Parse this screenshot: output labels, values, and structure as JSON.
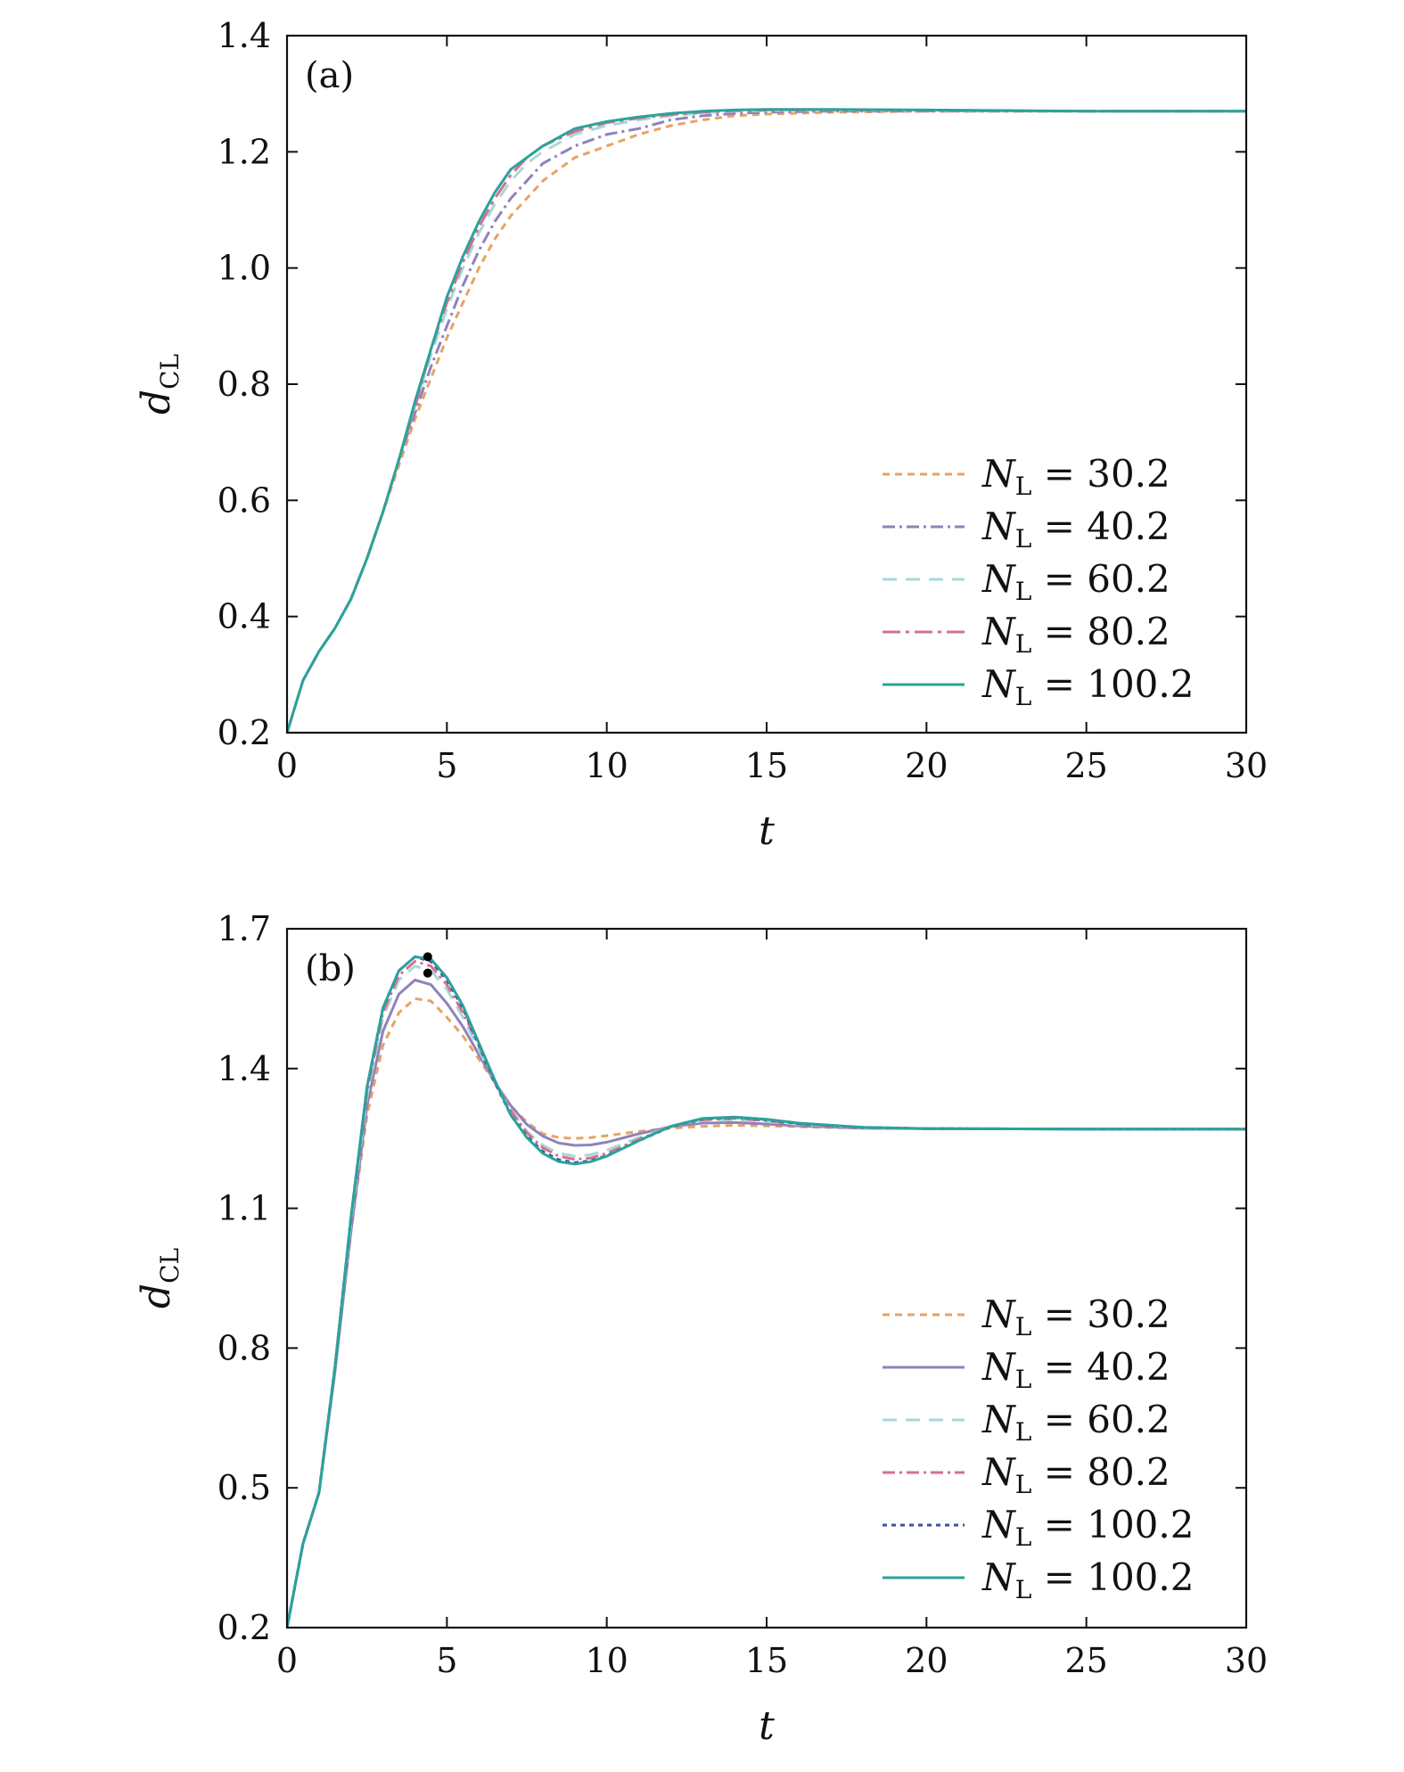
{
  "chart_data": [
    {
      "type": "line",
      "panel_label": "(a)",
      "xlabel": "t",
      "ylabel": "d",
      "ylabel_sub": "CL",
      "xlim": [
        0,
        30
      ],
      "ylim": [
        0.2,
        1.4
      ],
      "xticks": [
        "0",
        "5",
        "10",
        "15",
        "20",
        "25",
        "30"
      ],
      "yticks": [
        "0.2",
        "0.4",
        "0.6",
        "0.8",
        "1.0",
        "1.2",
        "1.4"
      ],
      "grid": false,
      "legend_position": "bottom-right",
      "series": [
        {
          "legend": "N",
          "legend_sub": "L",
          "legend_value": "= 30.2",
          "color": "#e8a264",
          "dash": "8,6",
          "x": [
            0,
            0.5,
            1,
            1.5,
            2,
            2.5,
            3,
            3.5,
            4,
            4.5,
            5,
            5.5,
            6,
            6.5,
            7,
            7.5,
            8,
            9,
            10,
            11,
            12,
            13,
            14,
            15,
            17,
            20,
            25,
            30
          ],
          "y": [
            0.2,
            0.29,
            0.34,
            0.38,
            0.43,
            0.5,
            0.58,
            0.66,
            0.74,
            0.81,
            0.88,
            0.94,
            1.0,
            1.05,
            1.09,
            1.12,
            1.15,
            1.19,
            1.21,
            1.23,
            1.245,
            1.255,
            1.262,
            1.265,
            1.268,
            1.27,
            1.27,
            1.27
          ]
        },
        {
          "legend": "N",
          "legend_sub": "L",
          "legend_value": "= 40.2",
          "color": "#8e83bb",
          "dash": "14,5,3,5",
          "x": [
            0,
            0.5,
            1,
            1.5,
            2,
            2.5,
            3,
            3.5,
            4,
            4.5,
            5,
            5.5,
            6,
            6.5,
            7,
            7.5,
            8,
            9,
            10,
            11,
            12,
            13,
            14,
            15,
            17,
            20,
            25,
            30
          ],
          "y": [
            0.2,
            0.29,
            0.34,
            0.38,
            0.43,
            0.5,
            0.58,
            0.67,
            0.75,
            0.83,
            0.9,
            0.97,
            1.03,
            1.08,
            1.12,
            1.15,
            1.18,
            1.21,
            1.23,
            1.24,
            1.255,
            1.262,
            1.266,
            1.268,
            1.27,
            1.27,
            1.27,
            1.27
          ]
        },
        {
          "legend": "N",
          "legend_sub": "L",
          "legend_value": "= 60.2",
          "color": "#a9d8d8",
          "dash": "16,10",
          "x": [
            0,
            0.5,
            1,
            1.5,
            2,
            2.5,
            3,
            3.5,
            4,
            4.5,
            5,
            5.5,
            6,
            6.5,
            7,
            7.5,
            8,
            9,
            10,
            11,
            12,
            13,
            14,
            15,
            17,
            20,
            25,
            30
          ],
          "y": [
            0.2,
            0.29,
            0.34,
            0.38,
            0.43,
            0.5,
            0.58,
            0.67,
            0.76,
            0.85,
            0.93,
            1.0,
            1.06,
            1.11,
            1.15,
            1.18,
            1.2,
            1.23,
            1.245,
            1.255,
            1.262,
            1.267,
            1.27,
            1.271,
            1.272,
            1.271,
            1.27,
            1.27
          ]
        },
        {
          "legend": "N",
          "legend_sub": "L",
          "legend_value": "= 80.2",
          "color": "#d6708f",
          "dash": "20,6,4,6",
          "x": [
            0,
            0.5,
            1,
            1.5,
            2,
            2.5,
            3,
            3.5,
            4,
            4.5,
            5,
            5.5,
            6,
            6.5,
            7,
            7.5,
            8,
            9,
            10,
            11,
            12,
            13,
            14,
            15,
            17,
            20,
            25,
            30
          ],
          "y": [
            0.2,
            0.29,
            0.34,
            0.38,
            0.43,
            0.5,
            0.58,
            0.67,
            0.76,
            0.86,
            0.94,
            1.01,
            1.07,
            1.12,
            1.16,
            1.19,
            1.21,
            1.235,
            1.25,
            1.258,
            1.264,
            1.268,
            1.271,
            1.272,
            1.272,
            1.271,
            1.27,
            1.27
          ]
        },
        {
          "legend": "N",
          "legend_sub": "L",
          "legend_value": "= 100.2",
          "color": "#2aa39a",
          "dash": "",
          "x": [
            0,
            0.5,
            1,
            1.5,
            2,
            2.5,
            3,
            3.5,
            4,
            4.5,
            5,
            5.5,
            6,
            6.5,
            7,
            7.5,
            8,
            9,
            10,
            11,
            12,
            13,
            14,
            15,
            17,
            20,
            25,
            30
          ],
          "y": [
            0.2,
            0.29,
            0.34,
            0.38,
            0.43,
            0.5,
            0.58,
            0.67,
            0.77,
            0.86,
            0.95,
            1.02,
            1.08,
            1.13,
            1.17,
            1.19,
            1.21,
            1.24,
            1.252,
            1.26,
            1.266,
            1.27,
            1.272,
            1.273,
            1.273,
            1.272,
            1.27,
            1.27
          ]
        }
      ]
    },
    {
      "type": "line",
      "panel_label": "(b)",
      "xlabel": "t",
      "ylabel": "d",
      "ylabel_sub": "CL",
      "xlim": [
        0,
        30
      ],
      "ylim": [
        0.2,
        1.7
      ],
      "xticks": [
        "0",
        "5",
        "10",
        "15",
        "20",
        "25",
        "30"
      ],
      "yticks": [
        "0.2",
        "0.5",
        "0.8",
        "1.1",
        "1.4",
        "1.7"
      ],
      "grid": false,
      "legend_position": "bottom-right",
      "markers": [
        {
          "x": 4.4,
          "y": 1.64
        },
        {
          "x": 4.4,
          "y": 1.605
        }
      ],
      "series": [
        {
          "legend": "N",
          "legend_sub": "L",
          "legend_value": "= 30.2",
          "color": "#e8a264",
          "dash": "8,6",
          "x": [
            0,
            0.5,
            1,
            1.5,
            2,
            2.5,
            3,
            3.5,
            4,
            4.5,
            5,
            5.5,
            6,
            6.5,
            7,
            7.5,
            8,
            8.5,
            9,
            9.5,
            10,
            11,
            12,
            13,
            14,
            15,
            16,
            18,
            20,
            25,
            30
          ],
          "y": [
            0.2,
            0.38,
            0.49,
            0.75,
            1.05,
            1.3,
            1.45,
            1.52,
            1.55,
            1.545,
            1.51,
            1.47,
            1.42,
            1.37,
            1.32,
            1.285,
            1.26,
            1.252,
            1.25,
            1.252,
            1.256,
            1.265,
            1.272,
            1.276,
            1.278,
            1.277,
            1.275,
            1.272,
            1.271,
            1.27,
            1.27
          ]
        },
        {
          "legend": "N",
          "legend_sub": "L",
          "legend_value": "= 40.2",
          "color": "#8e83bb",
          "dash": "",
          "x": [
            0,
            0.5,
            1,
            1.5,
            2,
            2.5,
            3,
            3.5,
            4,
            4.5,
            5,
            5.5,
            6,
            6.5,
            7,
            7.5,
            8,
            8.5,
            9,
            9.5,
            10,
            11,
            12,
            13,
            14,
            15,
            16,
            18,
            20,
            25,
            30
          ],
          "y": [
            0.2,
            0.38,
            0.49,
            0.75,
            1.05,
            1.32,
            1.48,
            1.56,
            1.59,
            1.58,
            1.54,
            1.49,
            1.43,
            1.37,
            1.32,
            1.28,
            1.255,
            1.24,
            1.235,
            1.236,
            1.242,
            1.26,
            1.275,
            1.283,
            1.284,
            1.281,
            1.277,
            1.272,
            1.271,
            1.27,
            1.27
          ]
        },
        {
          "legend": "N",
          "legend_sub": "L",
          "legend_value": "= 60.2",
          "color": "#a9d8d8",
          "dash": "16,10",
          "x": [
            0,
            0.5,
            1,
            1.5,
            2,
            2.5,
            3,
            3.5,
            4,
            4.5,
            5,
            5.5,
            6,
            6.5,
            7,
            7.5,
            8,
            8.5,
            9,
            9.5,
            10,
            11,
            12,
            13,
            14,
            15,
            16,
            18,
            20,
            25,
            30
          ],
          "y": [
            0.2,
            0.38,
            0.49,
            0.76,
            1.07,
            1.34,
            1.51,
            1.59,
            1.62,
            1.61,
            1.57,
            1.51,
            1.44,
            1.37,
            1.31,
            1.265,
            1.235,
            1.218,
            1.212,
            1.215,
            1.225,
            1.252,
            1.275,
            1.288,
            1.29,
            1.286,
            1.28,
            1.273,
            1.271,
            1.27,
            1.27
          ]
        },
        {
          "legend": "N",
          "legend_sub": "L",
          "legend_value": "= 80.2",
          "color": "#d6708f",
          "dash": "14,5,3,5",
          "x": [
            0,
            0.5,
            1,
            1.5,
            2,
            2.5,
            3,
            3.5,
            4,
            4.5,
            5,
            5.5,
            6,
            6.5,
            7,
            7.5,
            8,
            8.5,
            9,
            9.5,
            10,
            11,
            12,
            13,
            14,
            15,
            16,
            18,
            20,
            25,
            30
          ],
          "y": [
            0.2,
            0.38,
            0.49,
            0.76,
            1.08,
            1.35,
            1.52,
            1.6,
            1.63,
            1.62,
            1.58,
            1.52,
            1.45,
            1.37,
            1.31,
            1.262,
            1.23,
            1.212,
            1.205,
            1.208,
            1.218,
            1.248,
            1.275,
            1.29,
            1.293,
            1.288,
            1.281,
            1.273,
            1.271,
            1.27,
            1.27
          ]
        },
        {
          "legend": "N",
          "legend_sub": "L",
          "legend_value": "= 100.2",
          "color": "#3b53a4",
          "dash": "5,5",
          "x": [
            0,
            0.5,
            1,
            1.5,
            2,
            2.5,
            3,
            3.5,
            4,
            4.5,
            5,
            5.5,
            6,
            6.5,
            7,
            7.5,
            8,
            8.5,
            9,
            9.5,
            10,
            11,
            12,
            13,
            14,
            15,
            16,
            18,
            20,
            25,
            30
          ],
          "y": [
            0.2,
            0.38,
            0.49,
            0.76,
            1.08,
            1.36,
            1.53,
            1.61,
            1.64,
            1.63,
            1.59,
            1.53,
            1.45,
            1.37,
            1.3,
            1.255,
            1.222,
            1.204,
            1.198,
            1.202,
            1.213,
            1.245,
            1.275,
            1.292,
            1.295,
            1.29,
            1.282,
            1.274,
            1.271,
            1.27,
            1.27
          ]
        },
        {
          "legend": "N",
          "legend_sub": "L",
          "legend_value": "= 100.2",
          "color": "#2aa39a",
          "dash": "",
          "x": [
            0,
            0.5,
            1,
            1.5,
            2,
            2.5,
            3,
            3.5,
            4,
            4.5,
            5,
            5.5,
            6,
            6.5,
            7,
            7.5,
            8,
            8.5,
            9,
            9.5,
            10,
            11,
            12,
            13,
            14,
            15,
            16,
            18,
            20,
            25,
            30
          ],
          "y": [
            0.2,
            0.38,
            0.49,
            0.76,
            1.08,
            1.36,
            1.53,
            1.61,
            1.64,
            1.635,
            1.595,
            1.535,
            1.455,
            1.375,
            1.3,
            1.252,
            1.218,
            1.2,
            1.195,
            1.2,
            1.212,
            1.245,
            1.276,
            1.293,
            1.296,
            1.291,
            1.283,
            1.274,
            1.271,
            1.27,
            1.27
          ]
        }
      ]
    }
  ]
}
